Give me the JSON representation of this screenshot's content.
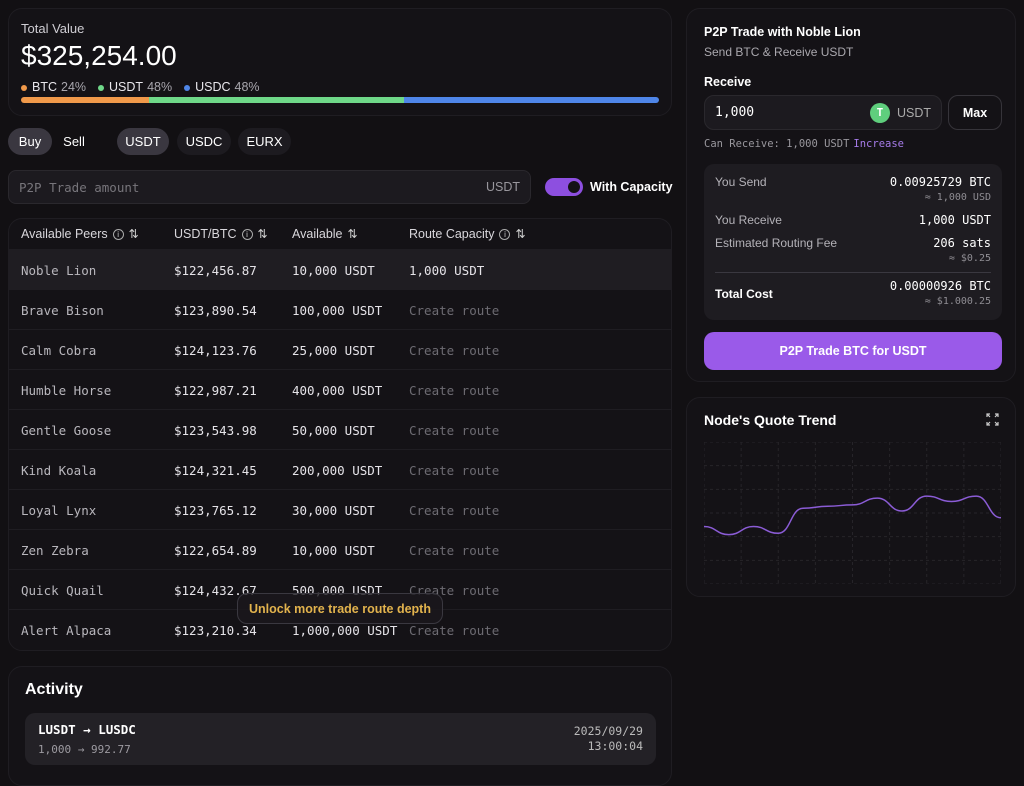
{
  "portfolio": {
    "label": "Total Value",
    "value": "$325,254.00",
    "assets": [
      {
        "name": "BTC",
        "pct": "24%",
        "color": "#f0994a",
        "share": 24
      },
      {
        "name": "USDT",
        "pct": "48%",
        "color": "#6fd889",
        "share": 48
      },
      {
        "name": "USDC",
        "pct": "48%",
        "color": "#4f86e8",
        "share": 48
      }
    ]
  },
  "side_tabs": [
    "Buy",
    "Sell"
  ],
  "currency_tabs": [
    "USDT",
    "USDC",
    "EURX"
  ],
  "amount": {
    "placeholder": "P2P Trade amount",
    "unit": "USDT"
  },
  "toggle": {
    "label": "With Capacity",
    "on": true
  },
  "table": {
    "headers": [
      "Available Peers",
      "USDT/BTC",
      "Available",
      "Route Capacity"
    ],
    "rows": [
      [
        "Noble Lion",
        "$122,456.87",
        "10,000 USDT",
        "1,000 USDT"
      ],
      [
        "Brave Bison",
        "$123,890.54",
        "100,000 USDT",
        "Create route"
      ],
      [
        "Calm Cobra",
        "$124,123.76",
        "25,000 USDT",
        "Create route"
      ],
      [
        "Humble Horse",
        "$122,987.21",
        "400,000 USDT",
        "Create route"
      ],
      [
        "Gentle Goose",
        "$123,543.98",
        "50,000 USDT",
        "Create route"
      ],
      [
        "Kind Koala",
        "$124,321.45",
        "200,000 USDT",
        "Create route"
      ],
      [
        "Loyal Lynx",
        "$123,765.12",
        "30,000 USDT",
        "Create route"
      ],
      [
        "Zen Zebra",
        "$122,654.89",
        "10,000 USDT",
        "Create route"
      ],
      [
        "Quick Quail",
        "$124,432.67",
        "500,000 USDT",
        "Create route"
      ],
      [
        "Alert Alpaca",
        "$123,210.34",
        "1,000,000 USDT",
        "Create route"
      ]
    ]
  },
  "unlock_label": "Unlock more trade route depth",
  "activity": {
    "title": "Activity",
    "items": [
      {
        "pair": "LUSDT → LUSDC",
        "amounts": "1,000 → 992.77",
        "date": "2025/09/29",
        "time": "13:00:04"
      }
    ]
  },
  "trade": {
    "title": "P2P Trade with Noble Lion",
    "subtitle": "Send BTC & Receive USDT",
    "receive_label": "Receive",
    "receive_value": "1,000",
    "token_icon": "T",
    "receive_unit": "USDT",
    "max_label": "Max",
    "can_receive": "Can Receive: 1,000 USDT",
    "increase_label": "Increase",
    "you_send_label": "You Send",
    "you_send": "0.00925729 BTC",
    "you_send_usd": "≈ 1,000 USD",
    "you_receive_label": "You Receive",
    "you_receive": "1,000 USDT",
    "fee_label": "Estimated Routing Fee",
    "fee": "206 sats",
    "fee_usd": "≈ $0.25",
    "total_label": "Total Cost",
    "total": "0.00000926 BTC",
    "total_usd": "≈ $1.000.25",
    "cta": "P2P Trade BTC for USDT",
    "accent": "#9a5ae9"
  },
  "chart_data": {
    "type": "line",
    "title": "Node's Quote Trend",
    "grid": true,
    "line_color": "#8b5cd6",
    "values": [
      235,
      223,
      235,
      225,
      262,
      265,
      267,
      277,
      258,
      280,
      272,
      280,
      248
    ]
  }
}
